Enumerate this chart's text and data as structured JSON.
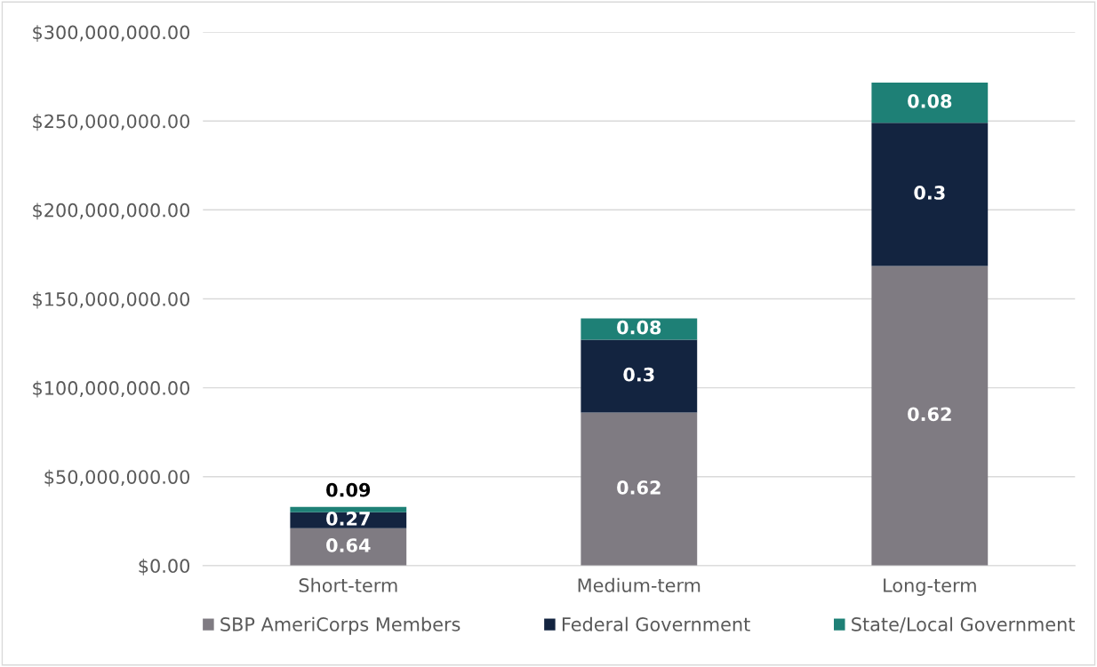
{
  "chart_data": {
    "type": "bar",
    "stacked": true,
    "categories": [
      "Short-term",
      "Medium-term",
      "Long-term"
    ],
    "series": [
      {
        "name": "SBP AmeriCorps Members",
        "color": "#7f7b82",
        "values": [
          21000000,
          86000000,
          168500000
        ]
      },
      {
        "name": "Federal Government",
        "color": "#132440",
        "values": [
          9000000,
          41000000,
          80500000
        ]
      },
      {
        "name": "State/Local Government",
        "color": "#1e8076",
        "values": [
          3000000,
          12000000,
          22500000
        ]
      }
    ],
    "annotations": [
      "0.64",
      "0.27",
      "0.09",
      "0.62",
      "0.3",
      "0.08",
      "0.62",
      "0.3",
      "0.08"
    ],
    "ylim": [
      0,
      300000000
    ],
    "yticks": [
      {
        "value": 0,
        "label": "$0.00"
      },
      {
        "value": 50000000,
        "label": "$50,000,000.00"
      },
      {
        "value": 100000000,
        "label": "$100,000,000.00"
      },
      {
        "value": 150000000,
        "label": "$150,000,000.00"
      },
      {
        "value": 200000000,
        "label": "$200,000,000.00"
      },
      {
        "value": 250000000,
        "label": "$250,000,000.00"
      },
      {
        "value": 300000000,
        "label": "$300,000,000.00"
      }
    ],
    "grid": "y",
    "legend": "bottom"
  }
}
